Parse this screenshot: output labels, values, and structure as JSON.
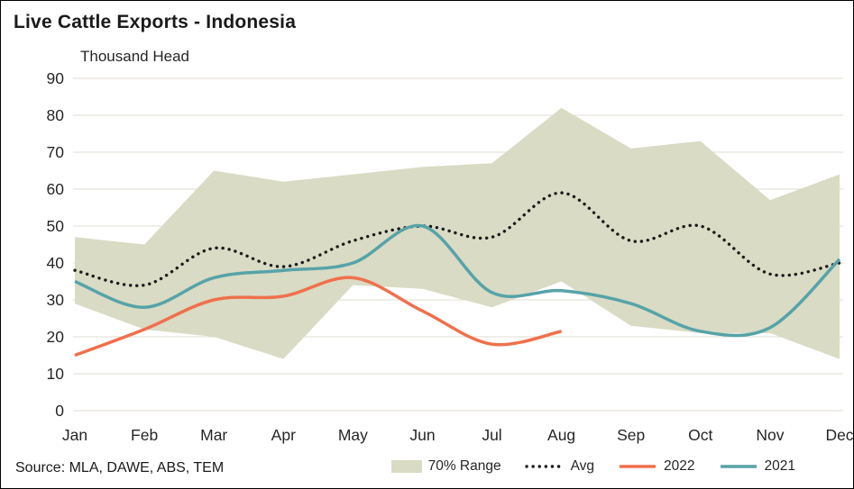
{
  "source": "Source: MLA, DAWE, ABS, TEM",
  "colors": {
    "band": "#d9dbc4",
    "avg": "#1a1a1a",
    "s2022": "#f0704c",
    "s2021": "#57a3a9",
    "grid": "#e0ded2"
  },
  "chart_data": {
    "type": "line",
    "title": "Live Cattle Exports - Indonesia",
    "ylabel": "Thousand Head",
    "xlabel": "",
    "categories": [
      "Jan",
      "Feb",
      "Mar",
      "Apr",
      "May",
      "Jun",
      "Jul",
      "Aug",
      "Sep",
      "Oct",
      "Nov",
      "Dec"
    ],
    "ylim": [
      0,
      90
    ],
    "yticks": [
      0,
      10,
      20,
      30,
      40,
      50,
      60,
      70,
      80,
      90
    ],
    "grid": "horizontal",
    "legend_position": "bottom",
    "band": {
      "name": "70% Range",
      "color": "#d9dbc4",
      "upper": [
        47,
        45,
        65,
        62,
        64,
        66,
        67,
        82,
        71,
        73,
        57,
        64
      ],
      "lower": [
        29,
        22,
        20,
        14,
        34,
        33,
        28,
        35,
        23,
        21,
        21,
        14
      ]
    },
    "series": [
      {
        "name": "Avg",
        "color": "#1a1a1a",
        "style": "dotted",
        "values": [
          38,
          34,
          44,
          39,
          46,
          50,
          47,
          59,
          46,
          50,
          37,
          40
        ]
      },
      {
        "name": "2022",
        "color": "#f0704c",
        "style": "solid",
        "values": [
          15,
          22,
          30,
          31,
          36,
          27,
          18,
          21.5,
          null,
          null,
          null,
          null
        ]
      },
      {
        "name": "2021",
        "color": "#57a3a9",
        "style": "solid",
        "values": [
          35,
          28,
          36,
          38,
          40,
          50,
          32,
          32.5,
          29,
          21.5,
          22.5,
          41
        ]
      }
    ]
  }
}
